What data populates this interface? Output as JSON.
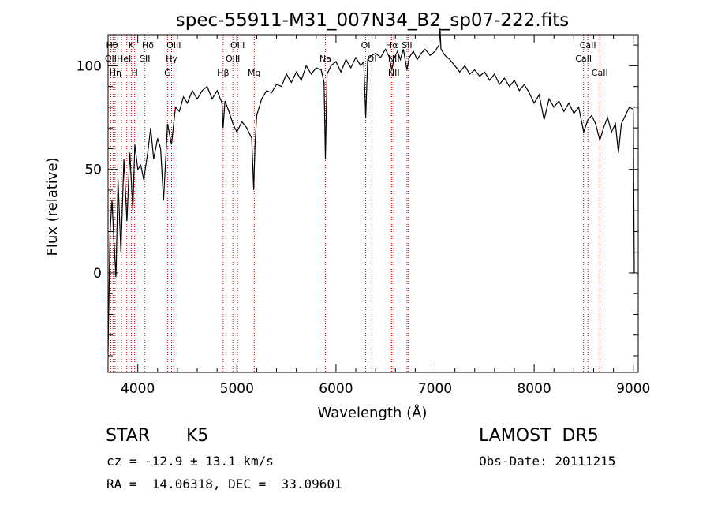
{
  "chart_data": {
    "type": "line",
    "title": "spec-55911-M31_007N34_B2_sp07-222.fits",
    "xlabel": "Wavelength (Å)",
    "ylabel": "Flux (relative)",
    "xlim": [
      3700,
      9050
    ],
    "ylim": [
      -48,
      115
    ],
    "x_ticks": [
      4000,
      5000,
      6000,
      7000,
      8000,
      9000
    ],
    "y_ticks": [
      0,
      50,
      100
    ],
    "grid": false,
    "line_color": "#000000",
    "marker_line_color": "#cc0000",
    "series": [
      {
        "x": [
          3700,
          3720,
          3740,
          3760,
          3780,
          3800,
          3830,
          3860,
          3890,
          3920,
          3950,
          3970,
          4000,
          4030,
          4060,
          4100,
          4130,
          4160,
          4200,
          4230,
          4260,
          4300,
          4340,
          4380,
          4420,
          4460,
          4500,
          4550,
          4600,
          4650,
          4700,
          4750,
          4800,
          4850,
          4861,
          4880,
          4920,
          4960,
          5000,
          5050,
          5100,
          5150,
          5170,
          5183,
          5200,
          5250,
          5300,
          5350,
          5400,
          5450,
          5500,
          5550,
          5600,
          5650,
          5700,
          5750,
          5800,
          5850,
          5880,
          5893,
          5910,
          5950,
          6000,
          6050,
          6100,
          6150,
          6200,
          6250,
          6280,
          6300,
          6320,
          6360,
          6400,
          6450,
          6500,
          6540,
          6563,
          6590,
          6620,
          6650,
          6680,
          6716,
          6740,
          6780,
          6820,
          6860,
          6900,
          6950,
          7000,
          7040,
          7050,
          7060,
          7100,
          7150,
          7200,
          7250,
          7300,
          7350,
          7400,
          7450,
          7500,
          7550,
          7600,
          7650,
          7700,
          7750,
          7800,
          7850,
          7900,
          7950,
          8000,
          8050,
          8100,
          8150,
          8200,
          8250,
          8300,
          8350,
          8400,
          8450,
          8500,
          8542,
          8580,
          8620,
          8662,
          8700,
          8740,
          8780,
          8820,
          8850,
          8880,
          8920,
          8960,
          9000,
          9010
        ],
        "y": [
          -38,
          20,
          35,
          15,
          -2,
          45,
          10,
          55,
          25,
          58,
          30,
          62,
          50,
          52,
          45,
          58,
          70,
          55,
          65,
          60,
          35,
          72,
          62,
          80,
          78,
          85,
          82,
          88,
          84,
          88,
          90,
          84,
          88,
          82,
          70,
          83,
          78,
          72,
          68,
          73,
          70,
          65,
          40,
          62,
          76,
          84,
          88,
          87,
          91,
          90,
          96,
          92,
          97,
          93,
          100,
          96,
          99,
          98,
          92,
          55,
          96,
          100,
          102,
          97,
          103,
          99,
          104,
          100,
          102,
          75,
          103,
          105,
          106,
          104,
          108,
          104,
          98,
          104,
          107,
          103,
          108,
          98,
          104,
          107,
          103,
          106,
          108,
          105,
          107,
          110,
          118,
          108,
          105,
          103,
          100,
          97,
          100,
          96,
          98,
          95,
          97,
          93,
          96,
          91,
          94,
          90,
          93,
          88,
          91,
          87,
          82,
          86,
          74,
          84,
          80,
          83,
          78,
          82,
          77,
          80,
          68,
          74,
          76,
          72,
          64,
          70,
          75,
          68,
          72,
          58,
          72,
          76,
          80,
          79,
          0
        ]
      }
    ],
    "line_markers": [
      {
        "x": 3727,
        "label": "OII"
      },
      {
        "x": 3750,
        "label": "Hθ"
      },
      {
        "x": 3771,
        "label": "Hη"
      },
      {
        "x": 3798,
        "label": "Hη"
      },
      {
        "x": 3835,
        "label": "Hη"
      },
      {
        "x": 3889,
        "label": "HeI"
      },
      {
        "x": 3934,
        "label": "K"
      },
      {
        "x": 3968,
        "label": "H"
      },
      {
        "x": 4072,
        "label": "SII"
      },
      {
        "x": 4102,
        "label": "Hδ"
      },
      {
        "x": 4300,
        "label": "G"
      },
      {
        "x": 4341,
        "label": "Hγ"
      },
      {
        "x": 4363,
        "label": "OIII"
      },
      {
        "x": 4861,
        "label": "Hβ"
      },
      {
        "x": 4959,
        "label": "OIII"
      },
      {
        "x": 5007,
        "label": "OIII"
      },
      {
        "x": 5175,
        "label": "Mg"
      },
      {
        "x": 5893,
        "label": "Na"
      },
      {
        "x": 6300,
        "label": "OI"
      },
      {
        "x": 6364,
        "label": "OI"
      },
      {
        "x": 6548,
        "label": "NII"
      },
      {
        "x": 6563,
        "label": "Hα"
      },
      {
        "x": 6584,
        "label": "NII"
      },
      {
        "x": 6717,
        "label": "SII"
      },
      {
        "x": 6731,
        "label": "SII"
      },
      {
        "x": 8498,
        "label": "CaII"
      },
      {
        "x": 8542,
        "label": "CaII"
      },
      {
        "x": 8662,
        "label": "CaII"
      }
    ],
    "line_labels": [
      {
        "text": "Hθ",
        "x": 3740,
        "row": 0
      },
      {
        "text": "OII",
        "x": 3727,
        "row": 1
      },
      {
        "text": "Hη",
        "x": 3775,
        "row": 2
      },
      {
        "text": "K",
        "x": 3934,
        "row": 0
      },
      {
        "text": "HeI",
        "x": 3860,
        "row": 1
      },
      {
        "text": "H",
        "x": 3968,
        "row": 2
      },
      {
        "text": "Hδ",
        "x": 4102,
        "row": 0
      },
      {
        "text": "SII",
        "x": 4072,
        "row": 1
      },
      {
        "text": "OIII",
        "x": 4363,
        "row": 0
      },
      {
        "text": "Hγ",
        "x": 4341,
        "row": 1
      },
      {
        "text": "G",
        "x": 4300,
        "row": 2
      },
      {
        "text": "OIII",
        "x": 5007,
        "row": 0
      },
      {
        "text": "OIII",
        "x": 4959,
        "row": 1
      },
      {
        "text": "Hβ",
        "x": 4861,
        "row": 2
      },
      {
        "text": "Mg",
        "x": 5175,
        "row": 2
      },
      {
        "text": "Na",
        "x": 5893,
        "row": 1
      },
      {
        "text": "OI",
        "x": 6300,
        "row": 0
      },
      {
        "text": "Hα",
        "x": 6563,
        "row": 0
      },
      {
        "text": "SII",
        "x": 6717,
        "row": 0
      },
      {
        "text": "OI",
        "x": 6364,
        "row": 1
      },
      {
        "text": "NII",
        "x": 6584,
        "row": 1
      },
      {
        "text": "NII",
        "x": 6584,
        "row": 2
      },
      {
        "text": "CaII",
        "x": 8542,
        "row": 0
      },
      {
        "text": "CaII",
        "x": 8498,
        "row": 1
      },
      {
        "text": "CaII",
        "x": 8662,
        "row": 2
      }
    ]
  },
  "info": {
    "object_class": "STAR",
    "subclass": "K5",
    "survey": "LAMOST  DR5",
    "velocity": "cz = -12.9 ± 13.1 km/s",
    "obs_date": "Obs-Date: 20111215",
    "coords": "RA =  14.06318, DEC =  33.09601"
  }
}
